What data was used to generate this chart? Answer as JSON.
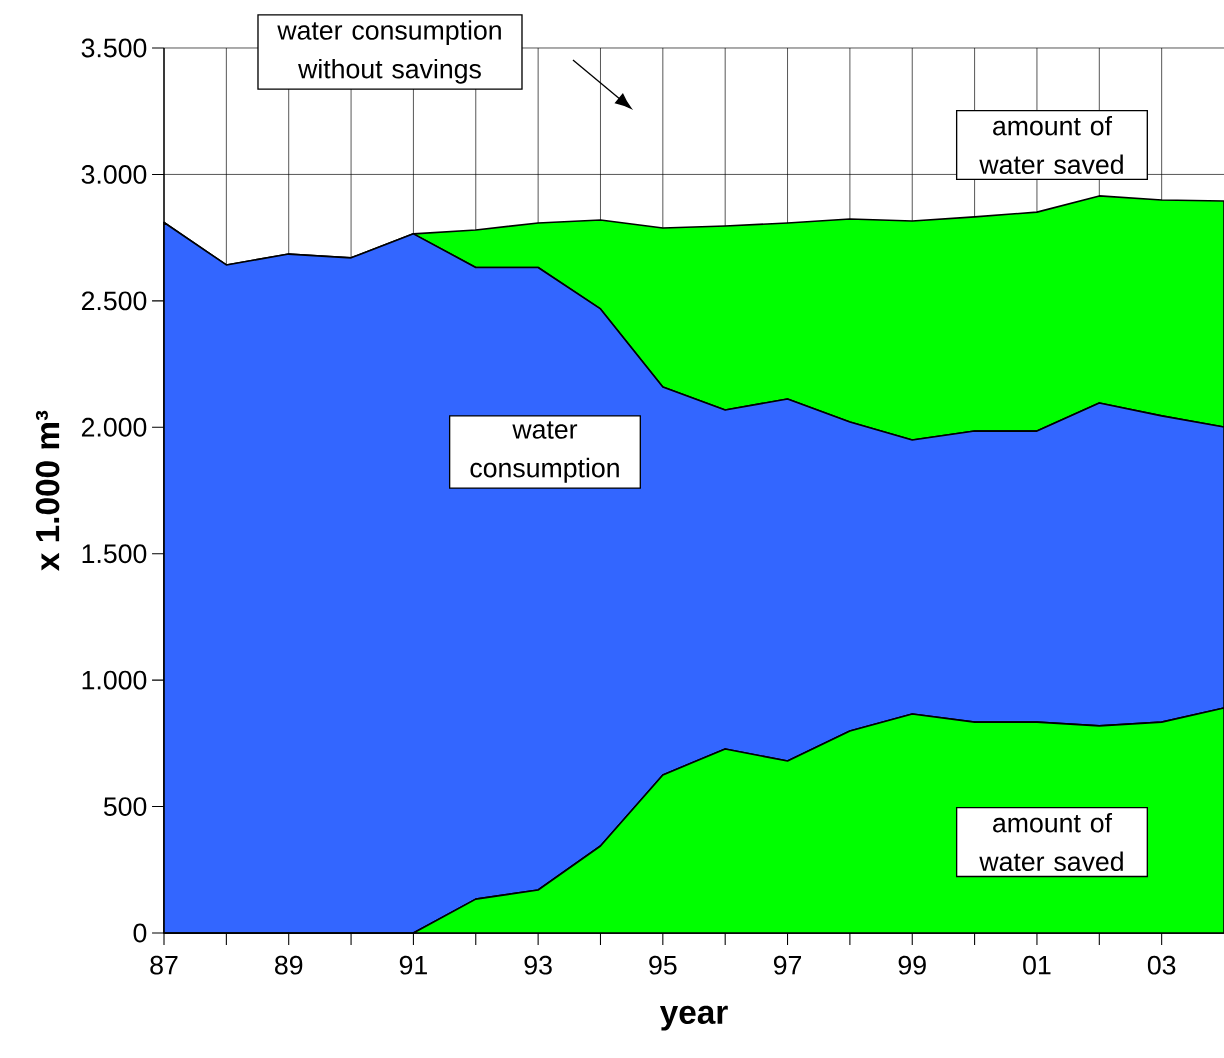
{
  "chart_data": {
    "type": "area",
    "stacked": true,
    "grid": true,
    "xlabel": "year",
    "ylabel": "x 1.000 m³",
    "x": [
      1987,
      1988,
      1989,
      1990,
      1991,
      1992,
      1993,
      1994,
      1995,
      1996,
      1997,
      1998,
      1999,
      2000,
      2001,
      2002,
      2003,
      2004
    ],
    "xlim": [
      1987,
      2004
    ],
    "xticks": [
      {
        "value": 1987,
        "label": "87"
      },
      {
        "value": 1988,
        "label": null
      },
      {
        "value": 1989,
        "label": "89"
      },
      {
        "value": 1990,
        "label": null
      },
      {
        "value": 1991,
        "label": "91"
      },
      {
        "value": 1992,
        "label": null
      },
      {
        "value": 1993,
        "label": "93"
      },
      {
        "value": 1994,
        "label": null
      },
      {
        "value": 1995,
        "label": "95"
      },
      {
        "value": 1996,
        "label": null
      },
      {
        "value": 1997,
        "label": "97"
      },
      {
        "value": 1998,
        "label": null
      },
      {
        "value": 1999,
        "label": "99"
      },
      {
        "value": 2000,
        "label": null
      },
      {
        "value": 2001,
        "label": "01"
      },
      {
        "value": 2002,
        "label": null
      },
      {
        "value": 2003,
        "label": "03"
      }
    ],
    "ylim": [
      0,
      3500
    ],
    "yticks": [
      0,
      500,
      {
        "value": 1000,
        "label": "1.000"
      },
      {
        "value": 1500,
        "label": "1.500"
      },
      {
        "value": 2000,
        "label": "2.000"
      },
      {
        "value": 2500,
        "label": "2.500"
      },
      {
        "value": 3000,
        "label": "3.000"
      },
      {
        "value": 3500,
        "label": "3.500"
      }
    ],
    "series": [
      {
        "name": "amount of water saved",
        "color": "#00ff00",
        "values": [
          0,
          0,
          0,
          0,
          0,
          134,
          170,
          344,
          625,
          728,
          680,
          799,
          866,
          834,
          834,
          819,
          834,
          890
        ]
      },
      {
        "name": "water consumption",
        "color": "#3366ff",
        "values": [
          2810,
          2642,
          2685,
          2670,
          2765,
          2498,
          2462,
          2124,
          1534,
          1340,
          1432,
          1222,
          1084,
          1151,
          1151,
          1277,
          1211,
          1111
        ]
      },
      {
        "name": "amount of water saved",
        "color": "#00ff00",
        "values": [
          0,
          0,
          0,
          0,
          0,
          148,
          176,
          352,
          629,
          728,
          696,
          803,
          866,
          847,
          866,
          819,
          854,
          894
        ]
      }
    ],
    "annotations": [
      "water consumption without savings"
    ]
  }
}
